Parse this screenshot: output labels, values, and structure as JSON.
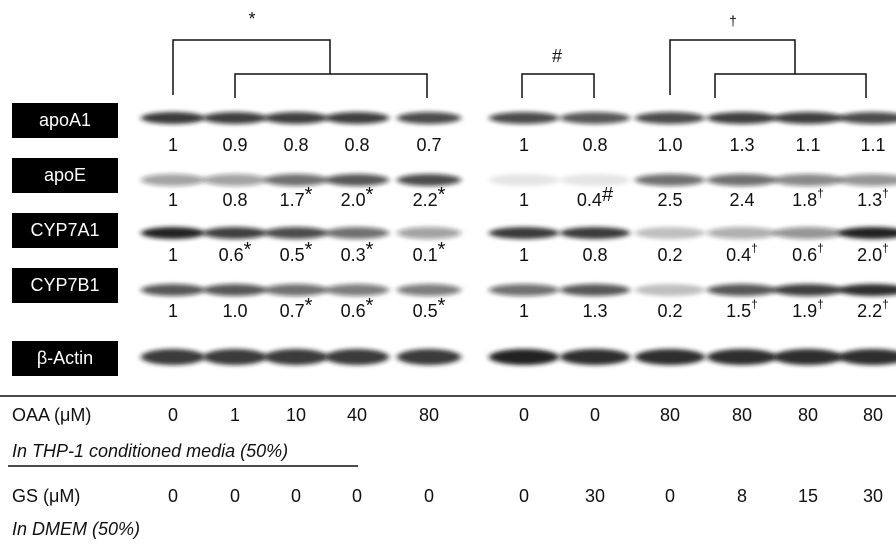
{
  "significance": {
    "left": "*",
    "middle": "#",
    "right": "†"
  },
  "rows": [
    {
      "label": "apoA1",
      "values": [
        {
          "text": "1"
        },
        {
          "text": "0.9"
        },
        {
          "text": "0.8"
        },
        {
          "text": "0.8"
        },
        {
          "text": "0.7"
        },
        {
          "text": "1"
        },
        {
          "text": "0.8"
        },
        {
          "text": "1.0"
        },
        {
          "text": "1.3"
        },
        {
          "text": "1.1"
        },
        {
          "text": "1.1"
        }
      ]
    },
    {
      "label": "apoE",
      "values": [
        {
          "text": "1"
        },
        {
          "text": "0.8"
        },
        {
          "text": "1.7",
          "mark": "*"
        },
        {
          "text": "2.0",
          "mark": "*"
        },
        {
          "text": "2.2",
          "mark": "*"
        },
        {
          "text": "1"
        },
        {
          "text": "0.4",
          "mark": "#"
        },
        {
          "text": "2.5"
        },
        {
          "text": "2.4"
        },
        {
          "text": "1.8",
          "mark": "†"
        },
        {
          "text": "1.3",
          "mark": "†"
        }
      ]
    },
    {
      "label": "CYP7A1",
      "values": [
        {
          "text": "1"
        },
        {
          "text": "0.6",
          "mark": "*"
        },
        {
          "text": "0.5",
          "mark": "*"
        },
        {
          "text": "0.3",
          "mark": "*"
        },
        {
          "text": "0.1",
          "mark": "*"
        },
        {
          "text": "1"
        },
        {
          "text": "0.8"
        },
        {
          "text": "0.2"
        },
        {
          "text": "0.4",
          "mark": "†"
        },
        {
          "text": "0.6",
          "mark": "†"
        },
        {
          "text": "2.0",
          "mark": "†"
        }
      ]
    },
    {
      "label": "CYP7B1",
      "values": [
        {
          "text": "1"
        },
        {
          "text": "1.0"
        },
        {
          "text": "0.7",
          "mark": "*"
        },
        {
          "text": "0.6",
          "mark": "*"
        },
        {
          "text": "0.5",
          "mark": "*"
        },
        {
          "text": "1"
        },
        {
          "text": "1.3"
        },
        {
          "text": "0.2"
        },
        {
          "text": "1.5",
          "mark": "†"
        },
        {
          "text": "1.9",
          "mark": "†"
        },
        {
          "text": "2.2",
          "mark": "†"
        }
      ]
    },
    {
      "label": "β-Actin",
      "values": []
    }
  ],
  "oaa": {
    "label": "OAA (μM)",
    "values": [
      "0",
      "1",
      "10",
      "40",
      "80",
      "0",
      "0",
      "80",
      "80",
      "80",
      "80"
    ]
  },
  "media_note": "In THP-1 conditioned media (50%)",
  "gs": {
    "label": "GS (μM)",
    "values": [
      "0",
      "0",
      "0",
      "0",
      "0",
      "0",
      "30",
      "0",
      "8",
      "15",
      "30"
    ]
  },
  "dmem_note": "In DMEM (50%)"
}
